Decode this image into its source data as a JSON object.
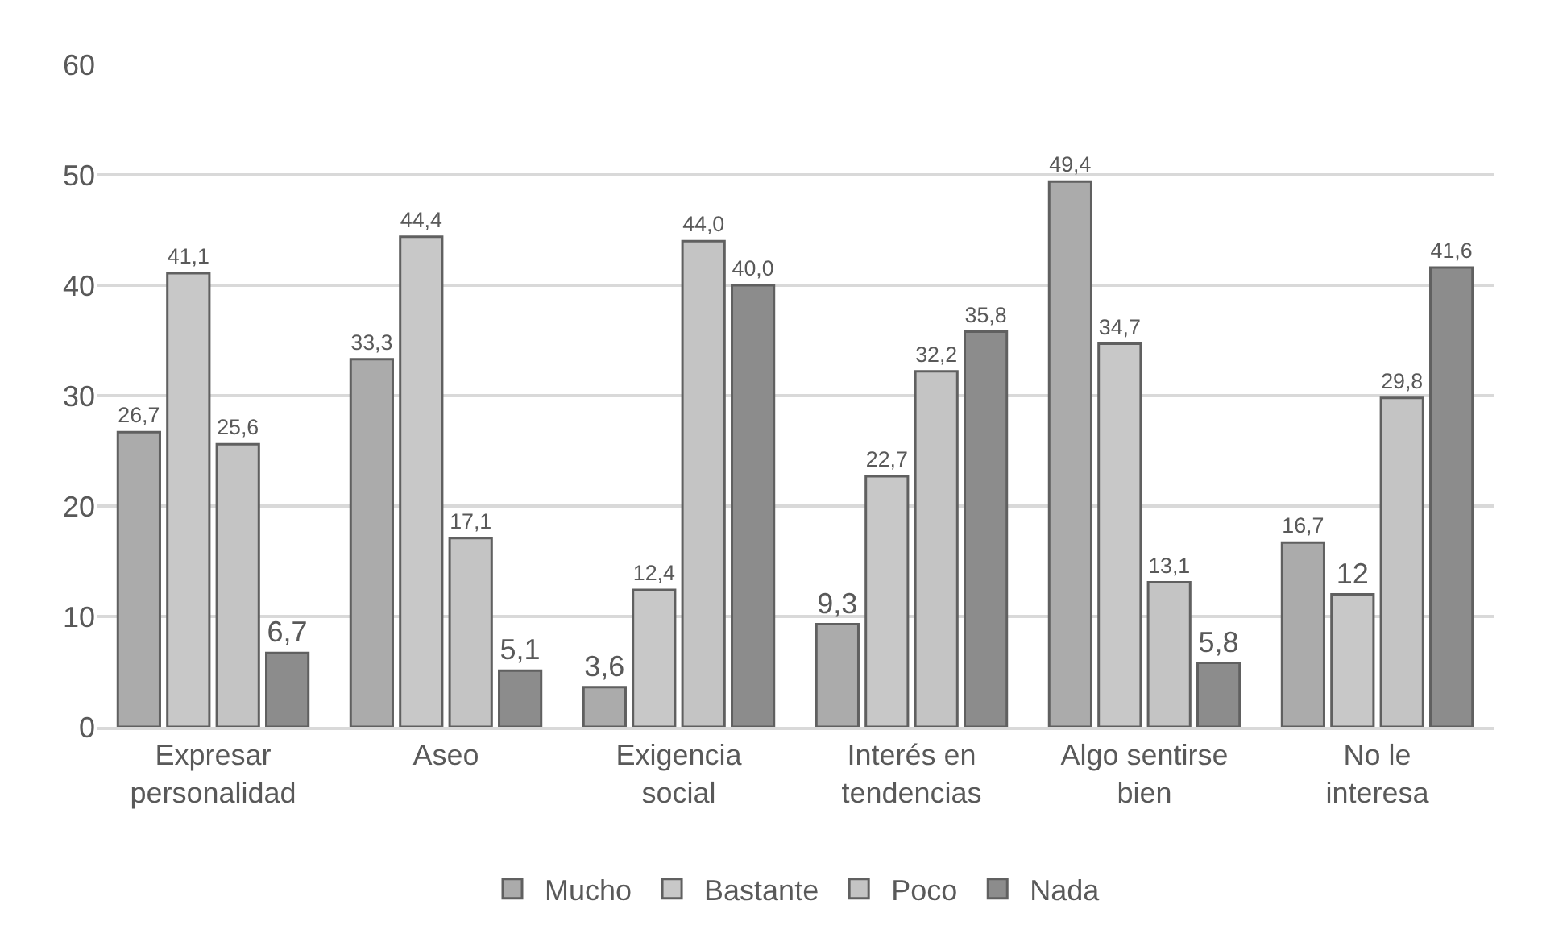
{
  "chart_data": {
    "type": "bar",
    "categories": [
      "Expresar\npersonalidad",
      "Aseo",
      "Exigencia\nsocial",
      "Interés en\ntendencias",
      "Algo sentirse\nbien",
      "No le\ninteresa"
    ],
    "series": [
      {
        "name": "Mucho",
        "color": "#ababab",
        "values": [
          26.7,
          33.3,
          3.6,
          9.3,
          49.4,
          16.7
        ],
        "value_labels": [
          "26,7",
          "33,3",
          "3,6",
          "9,3",
          "49,4",
          "16,7"
        ]
      },
      {
        "name": "Bastante",
        "color": "#c8c8c8",
        "values": [
          41.1,
          44.4,
          12.4,
          22.7,
          34.7,
          12
        ],
        "value_labels": [
          "41,1",
          "44,4",
          "12,4",
          "22,7",
          "34,7",
          "12"
        ]
      },
      {
        "name": "Poco",
        "color": "#c4c4c4",
        "values": [
          25.6,
          17.1,
          44.0,
          32.2,
          13.1,
          29.8
        ],
        "value_labels": [
          "25,6",
          "17,1",
          "44,0",
          "32,2",
          "13,1",
          "29,8"
        ]
      },
      {
        "name": "Nada",
        "color": "#8c8c8c",
        "values": [
          6.7,
          5.1,
          40.0,
          35.8,
          5.8,
          41.6
        ],
        "value_labels": [
          "6,7",
          "5,1",
          "40,0",
          "35,8",
          "5,8",
          "41,6"
        ]
      }
    ],
    "ylim": [
      0,
      60
    ],
    "yticks": [
      0,
      10,
      20,
      30,
      40,
      50,
      60
    ],
    "grid": "y",
    "legend": "bottom"
  }
}
